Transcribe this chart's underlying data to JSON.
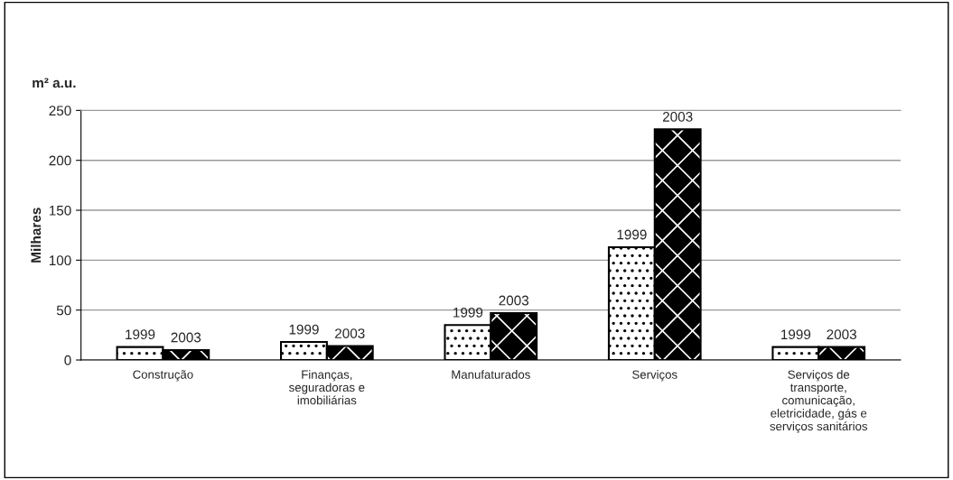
{
  "chart_data": {
    "type": "bar",
    "ylabel": "Milhares",
    "annotations": [
      "m² a.u."
    ],
    "categories": [
      "Construção",
      "Finanças,\nseguradoras e\nimobiliárias",
      "Manufaturados",
      "Serviços",
      "Serviços de\ntransporte,\ncomunicação,\neletricidade, gás e\nserviços sanitários"
    ],
    "series": [
      {
        "name": "1999",
        "color": "#ffffff",
        "values": [
          13,
          18,
          35,
          113,
          13
        ]
      },
      {
        "name": "2003",
        "color": "#000000",
        "values": [
          10,
          14,
          47,
          231,
          13
        ]
      }
    ],
    "ylim": [
      0,
      250
    ],
    "yticks": [
      0,
      50,
      100,
      150,
      200,
      250
    ],
    "grid": "y",
    "legend": false
  }
}
